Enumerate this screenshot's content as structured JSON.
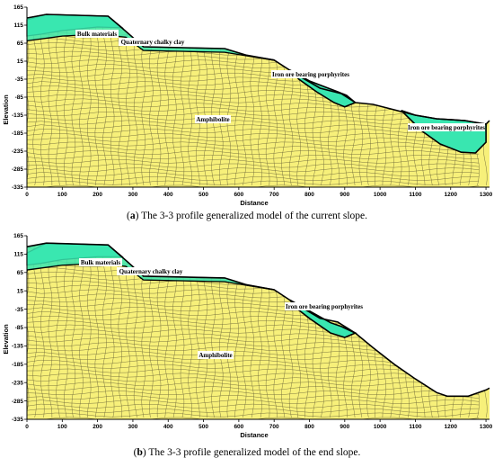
{
  "colors": {
    "rock": "#f7f07a",
    "mesh": "#6f6a3a",
    "green": "#39e6b0",
    "outline": "#000000"
  },
  "axes": {
    "ylabel": "Elevation",
    "xlabel": "Distance",
    "yticks": [
      "165",
      "115",
      "65",
      "15",
      "-35",
      "-85",
      "-135",
      "-185",
      "-235",
      "-285",
      "-335"
    ],
    "xticks": [
      "0",
      "100",
      "200",
      "300",
      "400",
      "500",
      "600",
      "700",
      "800",
      "900",
      "1000",
      "1100",
      "1200",
      "1300"
    ],
    "x_range": [
      0,
      1310
    ],
    "y_range": [
      -335,
      165
    ]
  },
  "panels": [
    {
      "id": "a",
      "caption_letter": "a",
      "caption_text": " The 3-3 profile generalized model of the current slope.",
      "labels": {
        "bulk": "Bulk materials",
        "clay": "Quaternary chalky clay",
        "ore1": "Iron ore bearing porphyrites",
        "amph": "Amphibolite",
        "ore2": "Iron ore bearing porphyrites"
      }
    },
    {
      "id": "b",
      "caption_letter": "b",
      "caption_text": " The 3-3 profile generalized model of the end slope.",
      "labels": {
        "bulk": "Bulk materials",
        "clay": "Quaternary chalky clay",
        "ore1": "Iron ore bearing porphyrites",
        "amph": "Amphibolite"
      }
    }
  ],
  "chart_data": [
    {
      "type": "diagram",
      "name": "current slope",
      "xlabel": "Distance",
      "ylabel": "Elevation",
      "xlim": [
        0,
        1310
      ],
      "ylim": [
        -335,
        165
      ],
      "surface": [
        [
          0,
          135
        ],
        [
          55,
          145
        ],
        [
          230,
          140
        ],
        [
          280,
          98
        ],
        [
          330,
          55
        ],
        [
          560,
          50
        ],
        [
          620,
          32
        ],
        [
          700,
          18
        ],
        [
          760,
          -20
        ],
        [
          830,
          -60
        ],
        [
          890,
          -75
        ],
        [
          930,
          -100
        ],
        [
          980,
          -105
        ],
        [
          1020,
          -115
        ],
        [
          1100,
          -135
        ],
        [
          1160,
          -145
        ],
        [
          1240,
          -150
        ],
        [
          1300,
          -160
        ],
        [
          1310,
          -150
        ]
      ]
    },
    {
      "type": "diagram",
      "name": "end slope",
      "xlabel": "Distance",
      "ylabel": "Elevation",
      "xlim": [
        0,
        1310
      ],
      "ylim": [
        -335,
        165
      ],
      "surface": [
        [
          0,
          135
        ],
        [
          55,
          145
        ],
        [
          230,
          140
        ],
        [
          280,
          98
        ],
        [
          330,
          55
        ],
        [
          560,
          50
        ],
        [
          620,
          32
        ],
        [
          700,
          18
        ],
        [
          760,
          -20
        ],
        [
          830,
          -60
        ],
        [
          880,
          -70
        ],
        [
          930,
          -100
        ],
        [
          980,
          -140
        ],
        [
          1040,
          -185
        ],
        [
          1100,
          -225
        ],
        [
          1160,
          -262
        ],
        [
          1190,
          -272
        ],
        [
          1250,
          -272
        ],
        [
          1300,
          -255
        ],
        [
          1310,
          -250
        ]
      ]
    }
  ]
}
